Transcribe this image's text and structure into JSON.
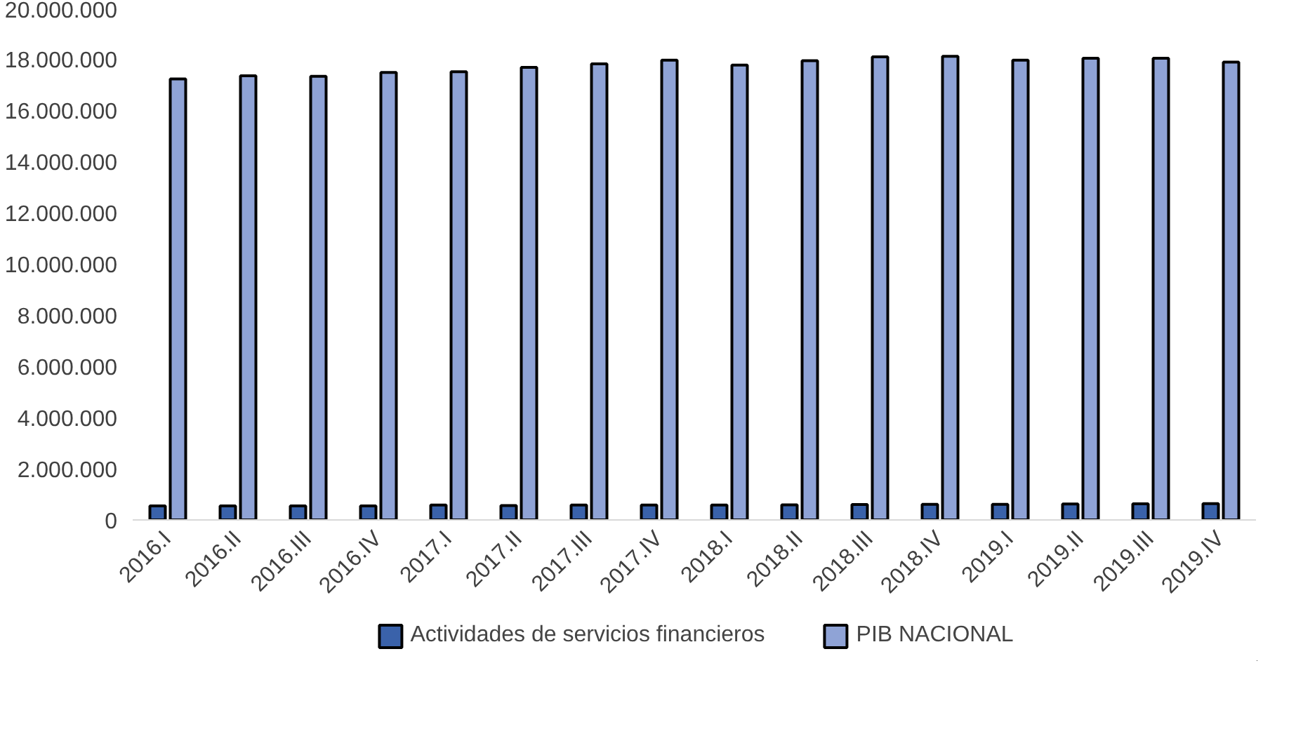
{
  "chart_data": {
    "type": "bar",
    "categories": [
      "2016.I",
      "2016.II",
      "2016.III",
      "2016.IV",
      "2017.I",
      "2017.II",
      "2017.III",
      "2017.IV",
      "2018.I",
      "2018.II",
      "2018.III",
      "2018.IV",
      "2019.I",
      "2019.II",
      "2019.III",
      "2019.IV"
    ],
    "series": [
      {
        "name": "Actividades de servicios financieros",
        "color": "#3a62aa",
        "values": [
          550000,
          550000,
          550000,
          550000,
          580000,
          560000,
          580000,
          580000,
          580000,
          590000,
          600000,
          610000,
          610000,
          620000,
          630000,
          640000
        ]
      },
      {
        "name": "PIB NACIONAL",
        "color": "#8fa3d6",
        "values": [
          17220000,
          17340000,
          17320000,
          17470000,
          17500000,
          17670000,
          17810000,
          17950000,
          17760000,
          17930000,
          18080000,
          18100000,
          17950000,
          18030000,
          18030000,
          17880000
        ]
      }
    ],
    "ylim": [
      0,
      20000000
    ],
    "yticks": [
      {
        "value": 0,
        "label": "0"
      },
      {
        "value": 2000000,
        "label": "2.000.000"
      },
      {
        "value": 4000000,
        "label": "4.000.000"
      },
      {
        "value": 6000000,
        "label": "6.000.000"
      },
      {
        "value": 8000000,
        "label": "8.000.000"
      },
      {
        "value": 10000000,
        "label": "10.000.000"
      },
      {
        "value": 12000000,
        "label": "12.000.000"
      },
      {
        "value": 14000000,
        "label": "14.000.000"
      },
      {
        "value": 16000000,
        "label": "16.000.000"
      },
      {
        "value": 18000000,
        "label": "18.000.000"
      },
      {
        "value": 20000000,
        "label": "20.000.000"
      }
    ],
    "grid": false,
    "legend": "bottom"
  }
}
